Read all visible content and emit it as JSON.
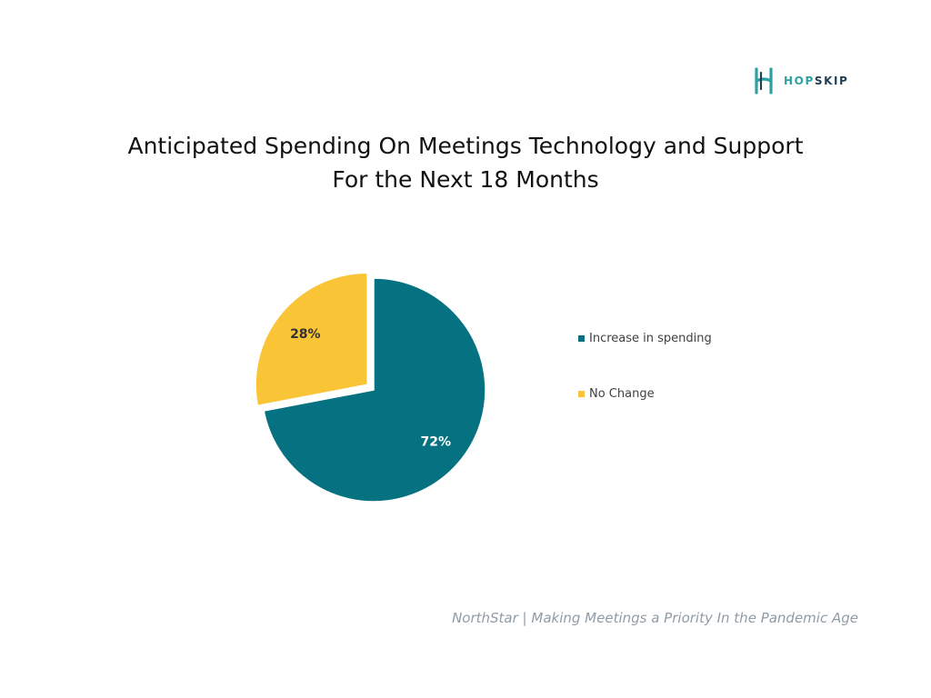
{
  "brand": {
    "logo_icon": "hopskip-h-icon",
    "name_part1": "HOP",
    "name_part2": "SKIP",
    "colors": {
      "primary": "#2f9fa2",
      "dark": "#1f3e51"
    }
  },
  "title_line1": "Anticipated Spending On Meetings Technology and Support",
  "title_line2": "For the Next 18 Months",
  "chart_data": {
    "type": "pie",
    "title": "Anticipated Spending On Meetings Technology and Support For the Next 18 Months",
    "categories": [
      "Increase in spending",
      "No Change"
    ],
    "values": [
      72,
      28
    ],
    "labels": [
      "72%",
      "28%"
    ],
    "colors": [
      "#067180",
      "#f9c436"
    ],
    "exploded": [
      "No Change"
    ],
    "legend_position": "right"
  },
  "source": "NorthStar | Making Meetings a Priority In the Pandemic Age"
}
